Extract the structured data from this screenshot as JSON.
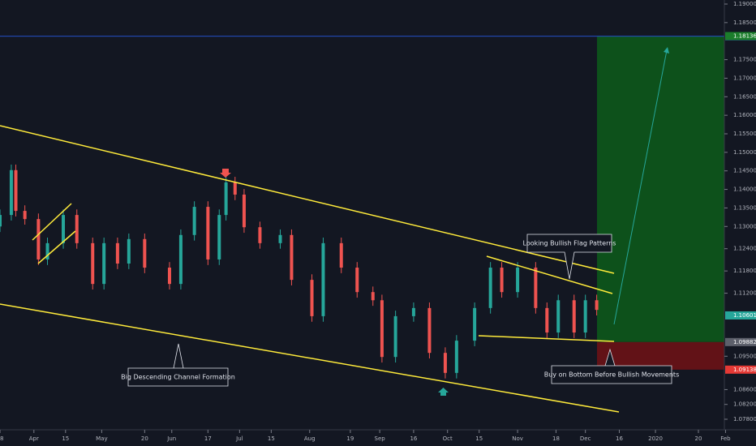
{
  "chart_data": {
    "type": "candlestick",
    "x": [
      -1,
      4,
      6,
      10,
      16,
      20,
      27,
      33,
      40,
      45,
      51,
      56,
      63,
      74,
      79,
      85,
      91,
      96,
      99,
      103,
      107,
      114,
      123,
      128,
      137,
      142,
      150,
      157,
      164,
      168,
      174,
      182,
      189,
      196,
      201,
      209,
      216,
      221,
      228,
      236,
      241,
      246,
      253,
      258,
      263
    ],
    "open": [
      1.13,
      1.1331,
      1.1452,
      1.1342,
      1.132,
      1.1211,
      1.1255,
      1.1331,
      1.1255,
      1.1145,
      1.1255,
      1.12,
      1.1266,
      1.1189,
      1.1145,
      1.1277,
      1.1353,
      1.1211,
      1.1331,
      1.1419,
      1.1386,
      1.1298,
      1.1255,
      1.1277,
      1.1156,
      1.1058,
      1.1255,
      1.1189,
      1.1123,
      1.1101,
      1.0948,
      1.1058,
      1.108,
      1.0959,
      1.0905,
      1.0992,
      1.108,
      1.1189,
      1.1123,
      1.1189,
      1.108,
      1.1014,
      1.1101,
      1.1014,
      1.1101
    ],
    "high": [
      1.1346,
      1.1467,
      1.1467,
      1.1357,
      1.1335,
      1.127,
      1.1346,
      1.1346,
      1.127,
      1.127,
      1.127,
      1.1281,
      1.1281,
      1.1204,
      1.1292,
      1.1368,
      1.1368,
      1.1346,
      1.1434,
      1.1434,
      1.1401,
      1.1313,
      1.1292,
      1.1292,
      1.1171,
      1.127,
      1.127,
      1.1204,
      1.1138,
      1.1116,
      1.1073,
      1.1095,
      1.1095,
      1.0974,
      1.1007,
      1.1095,
      1.1204,
      1.1204,
      1.1204,
      1.1204,
      1.1095,
      1.1116,
      1.1116,
      1.1116,
      1.1116
    ],
    "low": [
      1.1285,
      1.1316,
      1.1327,
      1.1305,
      1.1196,
      1.1196,
      1.124,
      1.124,
      1.113,
      1.113,
      1.1185,
      1.1185,
      1.1174,
      1.113,
      1.113,
      1.1262,
      1.1196,
      1.1196,
      1.1316,
      1.1371,
      1.1283,
      1.124,
      1.124,
      1.1141,
      1.1043,
      1.1043,
      1.1174,
      1.1108,
      1.1086,
      1.0933,
      1.0933,
      1.1043,
      1.0944,
      1.089,
      1.089,
      1.0977,
      1.1065,
      1.1108,
      1.1108,
      1.1065,
      1.0999,
      1.0999,
      1.0999,
      1.0999,
      1.106
    ],
    "close": [
      1.1331,
      1.1452,
      1.1342,
      1.132,
      1.1211,
      1.1255,
      1.1331,
      1.1255,
      1.1145,
      1.1255,
      1.12,
      1.1266,
      1.1189,
      1.1145,
      1.1277,
      1.1353,
      1.1211,
      1.1331,
      1.1419,
      1.1386,
      1.1298,
      1.1255,
      1.1277,
      1.1156,
      1.1058,
      1.1255,
      1.1189,
      1.1123,
      1.1101,
      1.0948,
      1.1058,
      1.108,
      1.0959,
      1.0905,
      1.0992,
      1.108,
      1.1189,
      1.1123,
      1.1189,
      1.108,
      1.1014,
      1.1101,
      1.1014,
      1.1101,
      1.1075
    ],
    "up_color": "#26a69a",
    "down_color": "#ef5350",
    "xlim": [
      -1,
      322
    ],
    "xticks": [
      {
        "value": -1,
        "label": "18"
      },
      {
        "value": 14,
        "label": "Apr"
      },
      {
        "value": 28,
        "label": "15"
      },
      {
        "value": 44,
        "label": "May"
      },
      {
        "value": 63,
        "label": "20"
      },
      {
        "value": 75,
        "label": "Jun"
      },
      {
        "value": 91,
        "label": "17"
      },
      {
        "value": 105,
        "label": "Jul"
      },
      {
        "value": 119,
        "label": "15"
      },
      {
        "value": 136,
        "label": "Aug"
      },
      {
        "value": 154,
        "label": "19"
      },
      {
        "value": 167,
        "label": "Sep"
      },
      {
        "value": 182,
        "label": "16"
      },
      {
        "value": 197,
        "label": "Oct"
      },
      {
        "value": 211,
        "label": "15"
      },
      {
        "value": 228,
        "label": "Nov"
      },
      {
        "value": 245,
        "label": "18"
      },
      {
        "value": 258,
        "label": "Dec"
      },
      {
        "value": 273,
        "label": "16"
      },
      {
        "value": 289,
        "label": "2020"
      },
      {
        "value": 308,
        "label": "20"
      },
      {
        "value": 320,
        "label": "Feb"
      }
    ],
    "ylim": [
      1.078,
      1.19
    ],
    "yticks": [
      {
        "value": 1.19,
        "label": "1.19000"
      },
      {
        "value": 1.185,
        "label": "1.18500"
      },
      {
        "value": 1.175,
        "label": "1.17500"
      },
      {
        "value": 1.17,
        "label": "1.17000"
      },
      {
        "value": 1.165,
        "label": "1.16500"
      },
      {
        "value": 1.16,
        "label": "1.16000"
      },
      {
        "value": 1.155,
        "label": "1.15500"
      },
      {
        "value": 1.15,
        "label": "1.15000"
      },
      {
        "value": 1.145,
        "label": "1.14500"
      },
      {
        "value": 1.14,
        "label": "1.14000"
      },
      {
        "value": 1.135,
        "label": "1.13500"
      },
      {
        "value": 1.13,
        "label": "1.13000"
      },
      {
        "value": 1.124,
        "label": "1.12400"
      },
      {
        "value": 1.118,
        "label": "1.11800"
      },
      {
        "value": 1.112,
        "label": "1.11200"
      },
      {
        "value": 1.095,
        "label": "1.09500"
      },
      {
        "value": 1.086,
        "label": "1.08600"
      },
      {
        "value": 1.082,
        "label": "1.08200"
      },
      {
        "value": 1.078,
        "label": "1.07800"
      }
    ],
    "price_labels": [
      {
        "value": 1.18131,
        "label": "1.18131",
        "color": "#2962ff"
      },
      {
        "value": 1.18136,
        "label": "1.18136",
        "color": "#1b7d2b"
      },
      {
        "value": 1.10601,
        "label": "1.10601",
        "color": "#26a69a"
      },
      {
        "value": 1.09882,
        "label": "1.09882",
        "color": "#5d606b"
      },
      {
        "value": 1.09138,
        "label": "1.09138",
        "color": "#e53935"
      }
    ],
    "annotations": [
      "Looking Bullish Flag Patterns",
      "Big Descending Channel Formation",
      "Buy on Bottom Before Bullish Movements"
    ]
  }
}
